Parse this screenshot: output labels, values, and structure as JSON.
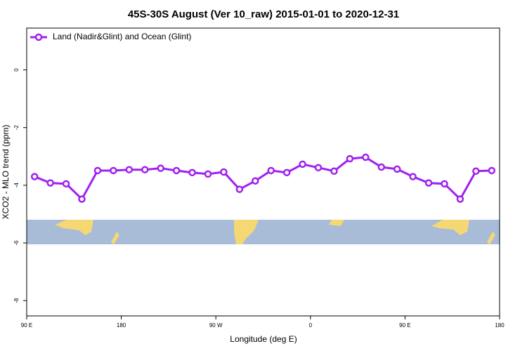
{
  "chart_data": {
    "type": "line",
    "title": "45S-30S August (Ver 10_raw)   2015-01-01 to 2020-12-31",
    "x_label": "Longitude (deg E)",
    "y_label": "XCO2 - MLO trend (ppm)",
    "legend": "top-left",
    "xlim": [
      90,
      540
    ],
    "ylim": [
      -8.53,
      1.45
    ],
    "xticks": [
      {
        "value": 90,
        "label": "90 E"
      },
      {
        "value": 180,
        "label": "180"
      },
      {
        "value": 270,
        "label": "90 W"
      },
      {
        "value": 360,
        "label": "0"
      },
      {
        "value": 450,
        "label": "90 E"
      },
      {
        "value": 540,
        "label": "180"
      }
    ],
    "yticks": [
      0,
      -2,
      -4,
      -6,
      -8
    ],
    "x": [
      97.5,
      112.5,
      127.5,
      142.5,
      157.5,
      172.5,
      187.5,
      202.5,
      217.5,
      232.5,
      247.5,
      262.5,
      277.5,
      292.5,
      307.5,
      322.5,
      337.5,
      352.5,
      367.5,
      382.5,
      397.5,
      412.5,
      427.5,
      442.5,
      457.5,
      472.5,
      487.5,
      502.5,
      517.5,
      532.5
    ],
    "series": [
      {
        "name": "Land (Nadir&Glint) and Ocean (Glint)",
        "color": "#a020f0",
        "values": [
          -3.7,
          -3.92,
          -3.95,
          -4.48,
          -3.49,
          -3.49,
          -3.46,
          -3.46,
          -3.41,
          -3.49,
          -3.56,
          -3.61,
          -3.54,
          -4.14,
          -3.85,
          -3.49,
          -3.56,
          -3.27,
          -3.39,
          -3.51,
          -3.08,
          -3.03,
          -3.37,
          -3.44,
          -3.7,
          -3.92,
          -3.95,
          -4.48,
          -3.51,
          -3.49
        ]
      }
    ]
  }
}
